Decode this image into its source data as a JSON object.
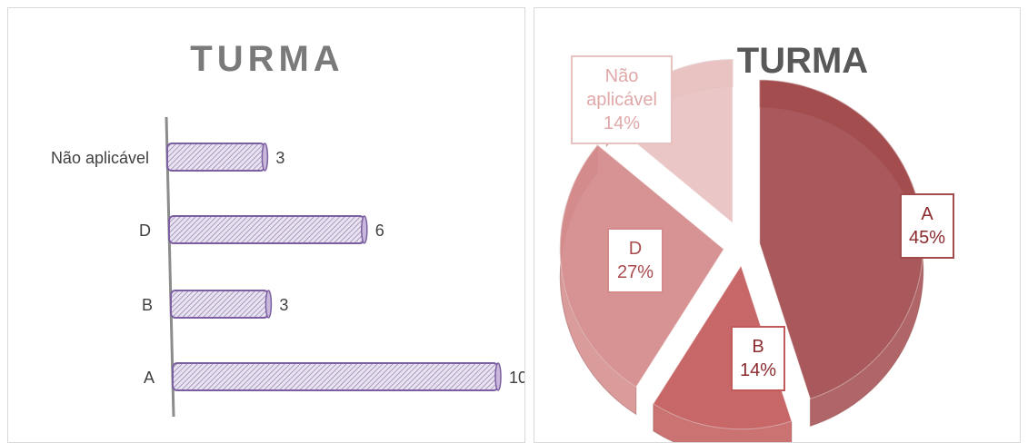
{
  "chart_data": [
    {
      "type": "bar",
      "title": "TURMA",
      "orientation": "horizontal",
      "categories": [
        "Não aplicável",
        "D",
        "B",
        "A"
      ],
      "values": [
        3,
        6,
        3,
        10
      ],
      "data_labels": [
        "3",
        "6",
        "3",
        "10"
      ],
      "bar_fill": "#c9b8dc",
      "bar_stroke": "#7b5fa0",
      "grid": false,
      "legend": "none"
    },
    {
      "type": "pie",
      "title": "TURMA",
      "slices": [
        {
          "label": "A",
          "value": 45,
          "pct_label": "45%",
          "color": "#a24b4d",
          "text_color": "#8b2b2e"
        },
        {
          "label": "B",
          "value": 14,
          "pct_label": "14%",
          "color": "#c25a5b",
          "text_color": "#8b2b2e"
        },
        {
          "label": "D",
          "value": 27,
          "pct_label": "27%",
          "color": "#d48a8a",
          "text_color": "#a94a4d"
        },
        {
          "label": "Não aplicável",
          "value": 14,
          "pct_label": "14%",
          "color": "#e8c1c1",
          "text_color": "#e0a8a8"
        }
      ],
      "exploded": true,
      "legend": "none"
    }
  ]
}
